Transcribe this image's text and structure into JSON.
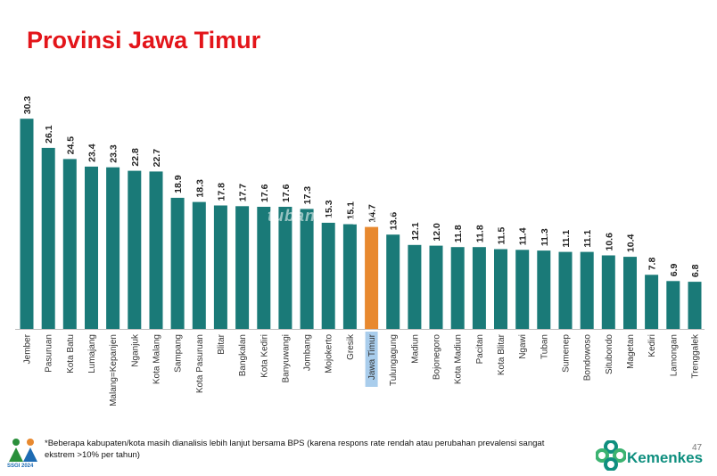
{
  "header": {
    "title": "Provinsi Jawa Timur"
  },
  "chart_data": {
    "type": "bar",
    "title": "Provinsi Jawa Timur",
    "xlabel": "",
    "ylabel": "",
    "ylim": [
      0,
      32
    ],
    "grid": false,
    "categories": [
      "Jember",
      "Pasuruan",
      "Kota Batu",
      "Lumajang",
      "Malang=Kepanjen",
      "Nganjuk",
      "Kota Malang",
      "Sampang",
      "Kota Pasuruan",
      "Blitar",
      "Bangkalan",
      "Kota Kediri",
      "Banyuwangi",
      "Jombang",
      "Mojokerto",
      "Gresik",
      "Jawa Timur",
      "Tulungagung",
      "Madiun",
      "Bojonegoro",
      "Kota Madiun",
      "Pacitan",
      "Kota Blitar",
      "Ngawi",
      "Tuban",
      "Sumenep",
      "Bondowoso",
      "Situbondo",
      "Magetan",
      "Kediri",
      "Lamongan",
      "Trenggalek"
    ],
    "values": [
      30.3,
      26.1,
      24.5,
      23.4,
      23.3,
      22.8,
      22.7,
      18.9,
      18.3,
      17.8,
      17.7,
      17.6,
      17.6,
      17.3,
      15.3,
      15.1,
      14.7,
      13.6,
      12.1,
      12.0,
      11.8,
      11.8,
      11.5,
      11.4,
      11.3,
      11.1,
      11.1,
      10.6,
      10.4,
      7.8,
      6.9,
      6.8
    ],
    "value_labels": [
      "30.3",
      "26.1",
      "24.5",
      "23.4",
      "23.3",
      "22.8",
      "22.7",
      "18.9",
      "18.3",
      "17.8",
      "17.7",
      "17.6",
      "17.6",
      "17.3",
      "15.3",
      "15.1",
      "14.7",
      "13.6",
      "12.1",
      "12.0",
      "11.8",
      "11.8",
      "11.5",
      "11.4",
      "11.3",
      "11.1",
      "11.1",
      "10.6",
      "10.4",
      "7.8",
      "6.9",
      "6.8"
    ],
    "highlight_category": "Jawa Timur",
    "colors": {
      "bar": "#1a7a78",
      "highlight": "#e8892f",
      "highlight_label_bg": "#a9cdec"
    }
  },
  "watermark": "tubankab.go.id",
  "footnote": "*Beberapa kabupaten/kota masih dianalisis lebih lanjut bersama BPS (karena respons rate rendah atau perubahan prevalensi sangat ekstrem >10% per tahun)",
  "page_number": "47",
  "logos": {
    "left": "SSGI 2024",
    "right": "Kemenkes"
  },
  "colors": {
    "title": "#e3151a",
    "brand": "#0f8f7f"
  }
}
